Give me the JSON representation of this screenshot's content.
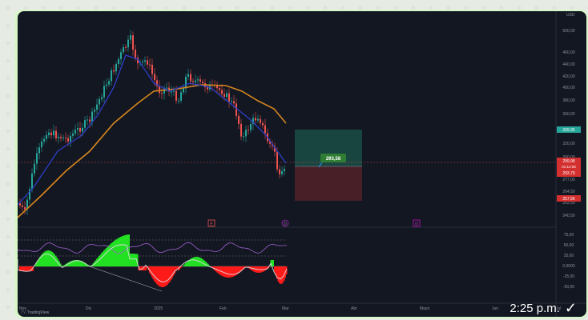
{
  "chat": {
    "timestamp": "2:25 p.m.",
    "delivered_icon": "check-icon"
  },
  "chart": {
    "currency": "USD",
    "watermark": "TradingView",
    "price_axis": [
      "500,00",
      "460,00",
      "440,00",
      "420,00",
      "400,00",
      "380,00",
      "360,00",
      "320,00",
      "300,00",
      "277,00",
      "264,50",
      "252,50",
      "240,50"
    ],
    "indicator_axis": [
      "75,00",
      "50,00",
      "25,00",
      "0,0000",
      "-25,00",
      "-50,00"
    ],
    "time_axis": [
      "Nov",
      "Dic",
      "2025",
      "Feb",
      "Mar",
      "Abr",
      "Mayo",
      "Jun",
      "Jul"
    ],
    "badges": {
      "green_top": "339,95",
      "red_current": "299,98",
      "red_countdown": "01:12:08",
      "red_low": "293,79",
      "red_bottom": "257,56"
    },
    "position_label": "293,58",
    "event_markers": [
      "E",
      "D",
      "D"
    ],
    "colors": {
      "background": "#131722",
      "candle_up": "#26a69a",
      "candle_down": "#ef5350",
      "ema_line": "#d6861e",
      "fast_line": "#2c3ec7",
      "profit_zone": "#1a4f4a",
      "loss_zone": "#5a2028",
      "osc_green": "#22e022",
      "osc_red": "#ff1a1a"
    }
  },
  "chart_data": {
    "type": "line",
    "x": [
      "Nov",
      "Dic",
      "2025",
      "Feb",
      "Mar"
    ],
    "series": [
      {
        "values": [
          252,
          330,
          440,
          410,
          300
        ]
      }
    ]
  }
}
